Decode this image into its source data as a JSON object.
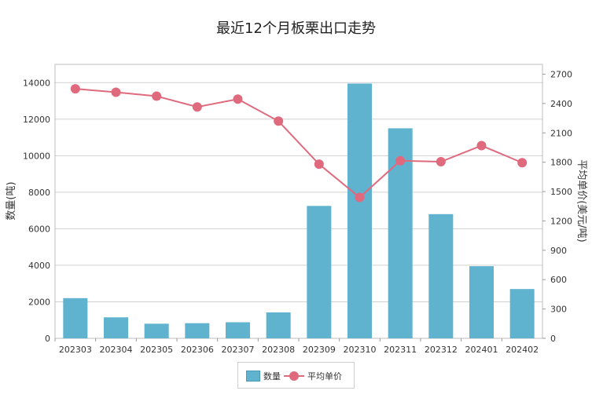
{
  "chart_data": {
    "type": "bar",
    "title": "最近12个月板栗出口走势",
    "categories": [
      "202303",
      "202304",
      "202305",
      "202306",
      "202307",
      "202308",
      "202309",
      "202310",
      "202311",
      "202312",
      "202401",
      "202402"
    ],
    "series": [
      {
        "name": "数量",
        "type": "bar",
        "axis": "left",
        "color": "#5fb3cf",
        "values": [
          2200,
          1150,
          800,
          830,
          880,
          1420,
          7250,
          13950,
          11500,
          6800,
          3950,
          2700
        ]
      },
      {
        "name": "平均单价",
        "type": "line",
        "axis": "right",
        "color": "#e06a7d",
        "values": [
          2550,
          2515,
          2475,
          2365,
          2445,
          2220,
          1780,
          1440,
          1815,
          1805,
          1970,
          1795
        ]
      }
    ],
    "ylabel": "数量(吨)",
    "ylabel_right": "平均单价(美元/吨)",
    "ylim": [
      0,
      15000
    ],
    "ylim_right": [
      0,
      2800
    ],
    "yticks": [
      "0",
      "2000",
      "4000",
      "6000",
      "8000",
      "10000",
      "12000",
      "14000"
    ],
    "yticks_right": [
      "0",
      "300",
      "600",
      "900",
      "1200",
      "1500",
      "1800",
      "2100",
      "2400",
      "2700"
    ],
    "grid": true,
    "legend_position": "bottom"
  }
}
